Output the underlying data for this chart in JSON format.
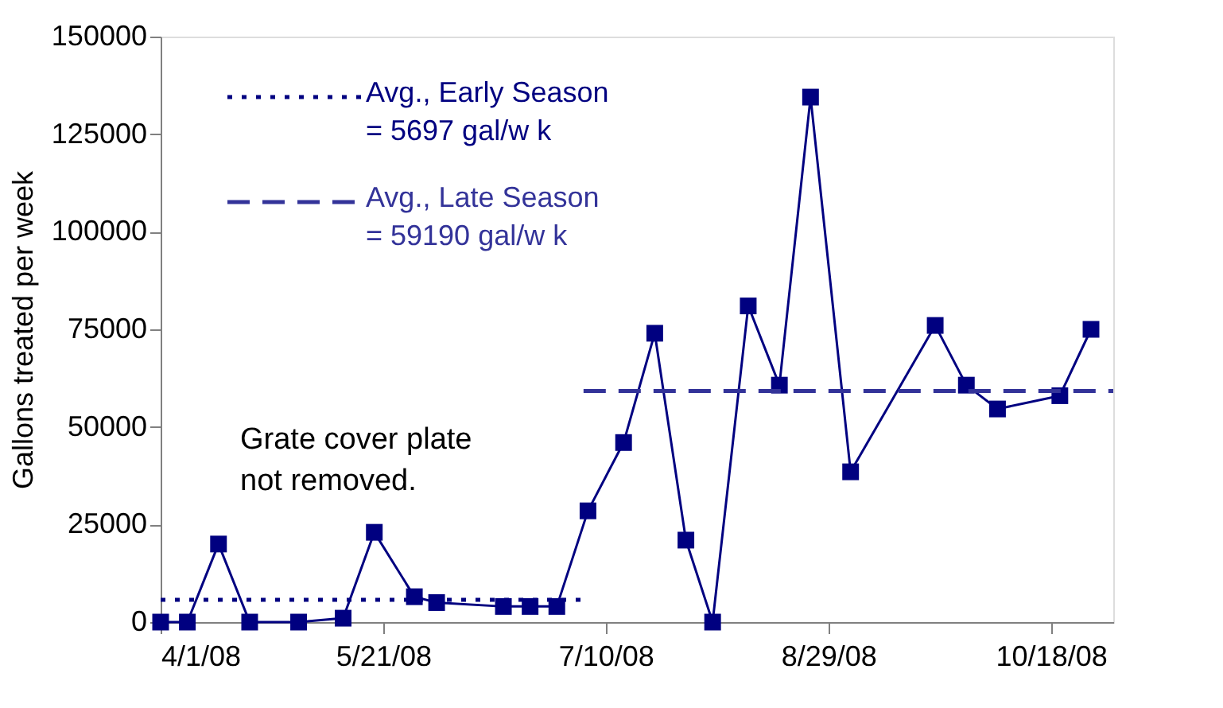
{
  "chart_data": {
    "type": "line",
    "ylabel": "Gallons treated per week",
    "xlim": [
      "2008-04-01",
      "2008-11-01"
    ],
    "xticks": [
      {
        "value": "2008-04-01",
        "label": "4/1/08"
      },
      {
        "value": "2008-05-21",
        "label": "5/21/08"
      },
      {
        "value": "2008-07-10",
        "label": "7/10/08"
      },
      {
        "value": "2008-08-29",
        "label": "8/29/08"
      },
      {
        "value": "2008-10-18",
        "label": "10/18/08"
      }
    ],
    "ylim": [
      0,
      150000
    ],
    "yticks": [
      0,
      25000,
      50000,
      75000,
      100000,
      125000,
      150000
    ],
    "grid": false,
    "legend": "top left",
    "series": [
      {
        "color": "#000080",
        "marker": "square",
        "line_style": "solid",
        "x": [
          "2008-04-01",
          "2008-04-07",
          "2008-04-14",
          "2008-04-21",
          "2008-05-02",
          "2008-05-12",
          "2008-05-19",
          "2008-05-28",
          "2008-06-02",
          "2008-06-17",
          "2008-06-23",
          "2008-06-29",
          "2008-07-06",
          "2008-07-14",
          "2008-07-21",
          "2008-07-28",
          "2008-08-03",
          "2008-08-11",
          "2008-08-18",
          "2008-08-25",
          "2008-09-03",
          "2008-09-22",
          "2008-09-29",
          "2008-10-06",
          "2008-10-20",
          "2008-10-27"
        ],
        "values": [
          0,
          0,
          20000,
          0,
          0,
          1000,
          23000,
          6500,
          5000,
          4000,
          4000,
          4000,
          28500,
          46000,
          74000,
          21000,
          0,
          81000,
          60700,
          134500,
          38500,
          76000,
          60700,
          54600,
          58000,
          75000
        ]
      },
      {
        "name": "Avg., Early Season\n= 5697 gal/w k",
        "color": "#000080",
        "marker": "none",
        "line_style": "dotted",
        "x": [
          "2008-04-01",
          "2008-07-05"
        ],
        "values": [
          5697,
          5697
        ]
      },
      {
        "name": "Avg., Late Season\n= 59190 gal/w k",
        "color": "#333399",
        "marker": "none",
        "line_style": "dashed",
        "x": [
          "2008-07-05",
          "2008-11-01"
        ],
        "values": [
          59190,
          59190
        ]
      }
    ],
    "annotations": [
      "Grate cover plate\nnot removed."
    ]
  }
}
